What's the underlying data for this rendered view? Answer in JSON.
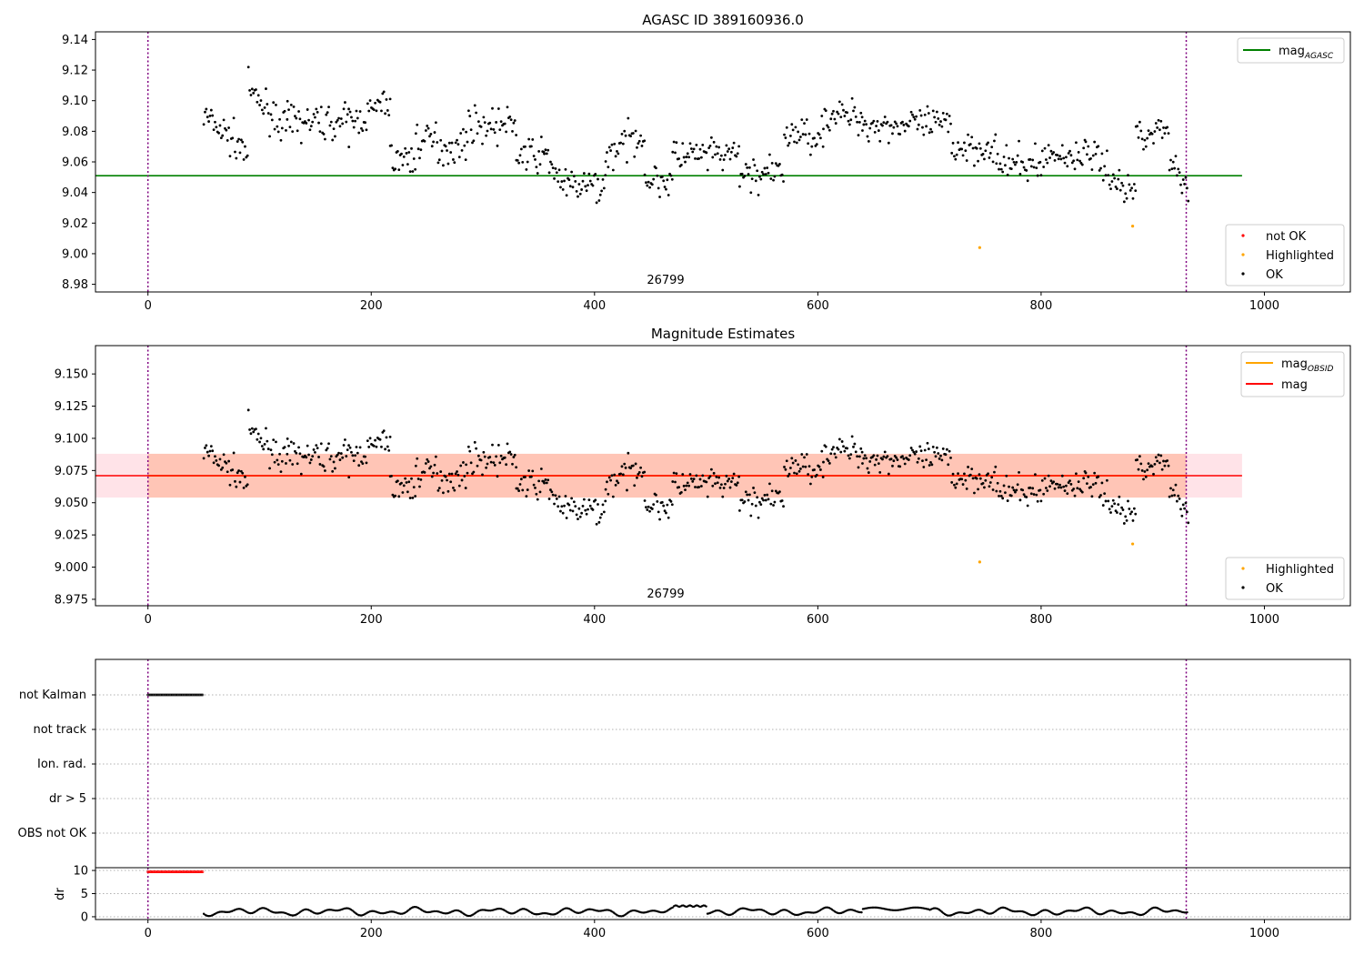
{
  "chart_data": [
    {
      "type": "scatter",
      "title": "AGASC ID 389160936.0",
      "annotation": "26799",
      "xlim": [
        -47,
        1077
      ],
      "ylim": [
        8.975,
        9.145
      ],
      "xticks": [
        "0",
        "200",
        "400",
        "600",
        "800",
        "1000"
      ],
      "yticks": [
        "8.98",
        "9.00",
        "9.02",
        "9.04",
        "9.06",
        "9.08",
        "9.10",
        "9.12",
        "9.14"
      ],
      "mag_agasc": 9.051,
      "obs_span": [
        0,
        930
      ],
      "line_span": [
        -47,
        980
      ],
      "legend_lines": [
        {
          "label": "mag",
          "sub": "AGASC",
          "color": "#008000"
        }
      ],
      "legend_points": [
        {
          "label": "not OK",
          "color": "#ff0000"
        },
        {
          "label": "Highlighted",
          "color": "#ffa500"
        },
        {
          "label": "OK",
          "color": "#000000"
        }
      ],
      "highlighted": [
        {
          "x": 745,
          "y": 9.004
        },
        {
          "x": 882,
          "y": 9.018
        }
      ]
    },
    {
      "type": "scatter",
      "title": "Magnitude Estimates",
      "annotation": "26799",
      "xlim": [
        -47,
        1077
      ],
      "ylim": [
        8.97,
        9.172
      ],
      "xticks": [
        "0",
        "200",
        "400",
        "600",
        "800",
        "1000"
      ],
      "yticks": [
        "8.975",
        "9.000",
        "9.025",
        "9.050",
        "9.075",
        "9.100",
        "9.125",
        "9.150"
      ],
      "mag": 9.071,
      "band": [
        9.054,
        9.088
      ],
      "obs_span": [
        0,
        930
      ],
      "line_span": [
        -47,
        980
      ],
      "legend_lines": [
        {
          "label": "mag",
          "sub": "OBSID",
          "color": "#ffa500"
        },
        {
          "label": "mag",
          "sub": "",
          "color": "#ff0000"
        }
      ],
      "legend_points": [
        {
          "label": "Highlighted",
          "color": "#ffa500"
        },
        {
          "label": "OK",
          "color": "#000000"
        }
      ],
      "highlighted": [
        {
          "x": 745,
          "y": 9.004
        },
        {
          "x": 882,
          "y": 9.018
        }
      ]
    },
    {
      "type": "scatter",
      "flag_labels": [
        "not Kalman",
        "not track",
        "Ion. rad.",
        "dr > 5",
        "OBS not OK"
      ],
      "not_kalman_span": [
        0,
        49
      ],
      "obs_span": [
        0,
        930
      ]
    },
    {
      "type": "scatter",
      "ylabel": "dr",
      "xlim": [
        -47,
        1077
      ],
      "ylim": [
        -0.6,
        10.6
      ],
      "xticks": [
        "0",
        "200",
        "400",
        "600",
        "800",
        "1000"
      ],
      "yticks": [
        "0",
        "5",
        "10"
      ],
      "red_span": [
        0,
        49
      ],
      "red_value": 9.7,
      "obs_span": [
        0,
        930
      ]
    }
  ],
  "colors": {
    "ok": "#000000",
    "not_ok": "#ff0000",
    "highlighted": "#ffa500",
    "agasc_line": "#008000",
    "mag_line": "#ff0000",
    "obsid_line": "#ffa500",
    "band_red": "#ffc0cb",
    "band_orange": "#ffa07a",
    "obs_marker": "#800080"
  }
}
